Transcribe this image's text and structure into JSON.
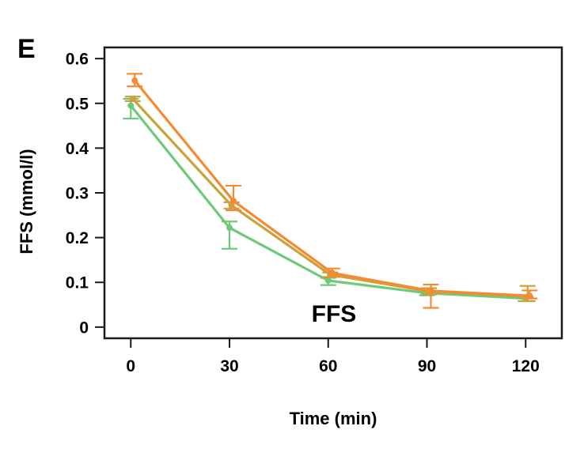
{
  "panel_label": "E",
  "chart_data": {
    "type": "line",
    "title": "",
    "xlabel": "Time (min)",
    "ylabel": "FFS (mmol/l)",
    "annotation": "FFS",
    "x": [
      0,
      30,
      60,
      90,
      120
    ],
    "x_tick_labels": [
      "0",
      "30",
      "60",
      "90",
      "120"
    ],
    "y_ticks": [
      0,
      0.1,
      0.2,
      0.3,
      0.4,
      0.5,
      0.6
    ],
    "y_tick_labels": [
      "0",
      "0.1",
      "0.2",
      "0.3",
      "0.4",
      "0.5",
      "0.6"
    ],
    "xlim": [
      -8,
      131
    ],
    "ylim": [
      -0.025,
      0.625
    ],
    "grid": false,
    "legend": "none",
    "series": [
      {
        "color": "#6fca78",
        "values": [
          0.495,
          0.222,
          0.104,
          0.076,
          0.064
        ],
        "err_low": [
          0.466,
          0.175,
          0.094,
          0.071,
          0.058
        ],
        "err_high": [
          0.51,
          0.236,
          0.11,
          0.081,
          0.068
        ]
      },
      {
        "color": "#c9a23a",
        "values": [
          0.51,
          0.272,
          0.117,
          0.08,
          0.068
        ],
        "err_low": [
          0.505,
          0.265,
          0.112,
          0.073,
          0.058
        ],
        "err_high": [
          0.515,
          0.279,
          0.122,
          0.087,
          0.092
        ]
      },
      {
        "color": "#f58a35",
        "values": [
          0.551,
          0.282,
          0.121,
          0.081,
          0.07
        ],
        "err_low": [
          0.538,
          0.261,
          0.112,
          0.043,
          0.064
        ],
        "err_high": [
          0.566,
          0.316,
          0.131,
          0.095,
          0.082
        ]
      }
    ]
  }
}
